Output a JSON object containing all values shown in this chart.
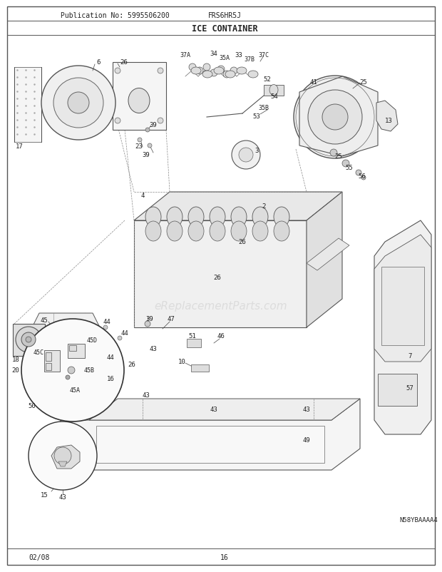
{
  "pub_no": "Publication No: 5995506200",
  "model": "FRS6HR5J",
  "title": "ICE CONTAINER",
  "part_no": "N58YBAAAA4",
  "date": "02/08",
  "page": "16",
  "bg_color": "#ffffff",
  "border_color": "#333333",
  "text_color": "#000000",
  "lc": "#444444",
  "watermark": "eReplacementParts.com",
  "fig_width": 6.2,
  "fig_height": 8.03,
  "dpi": 100
}
